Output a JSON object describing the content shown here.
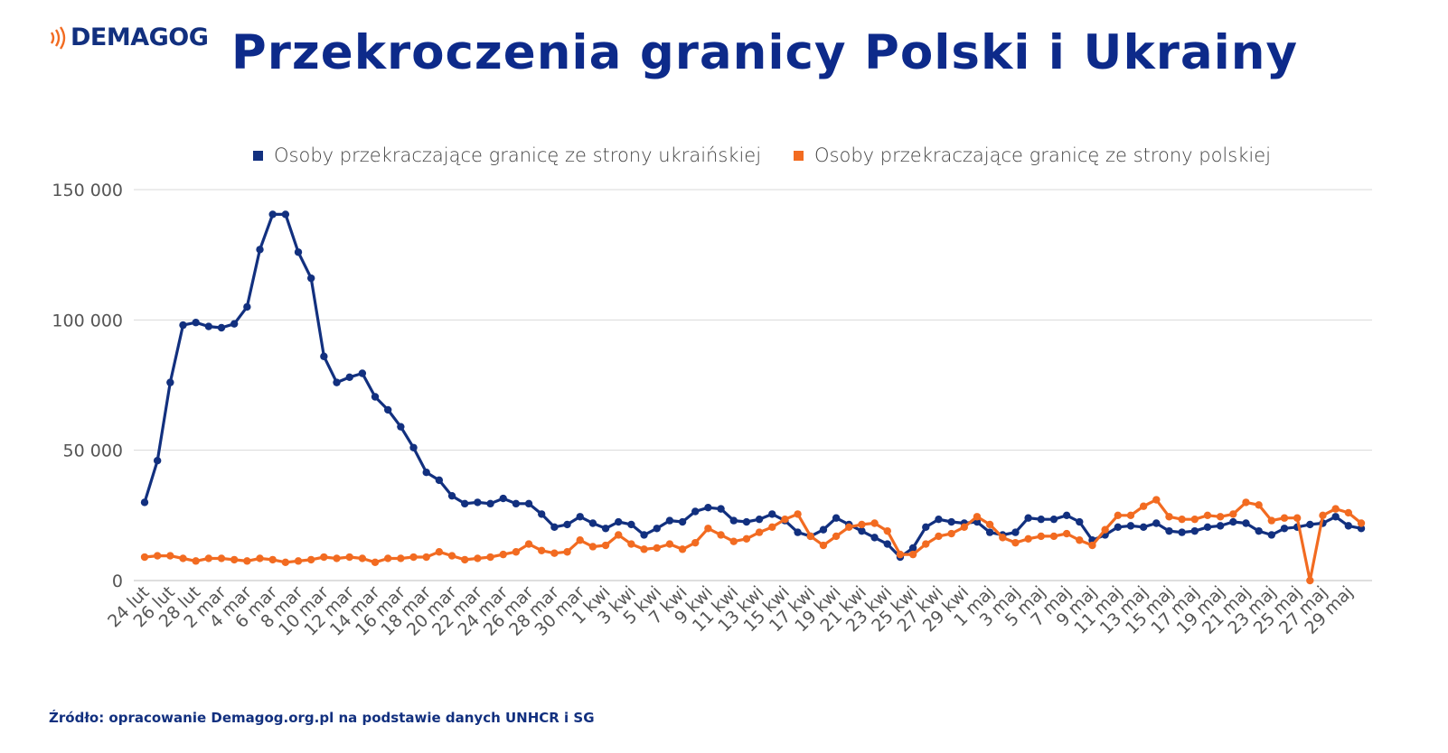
{
  "brand": {
    "name": "DEMAGOG",
    "accent": "#f26b21",
    "navy": "#12307f"
  },
  "title": "Przekroczenia granicy Polski i Ukrainy",
  "source": "Źródło: opracowanie Demagog.org.pl na podstawie danych UNHCR i SG",
  "chart_data": {
    "type": "line",
    "grid": true,
    "legend_position": "top",
    "ylim": [
      0,
      150000
    ],
    "yticks": [
      "0",
      "50 000",
      "100 000",
      "150 000"
    ],
    "ytick_values": [
      0,
      50000,
      100000,
      150000
    ],
    "x_tick_labels": [
      "24 lut",
      "26 lut",
      "28 lut",
      "2 mar",
      "4 mar",
      "6 mar",
      "8 mar",
      "10 mar",
      "12 mar",
      "14 mar",
      "16 mar",
      "18 mar",
      "20 mar",
      "22 mar",
      "24 mar",
      "26 mar",
      "28 mar",
      "30 mar",
      "1 kwi",
      "3 kwi",
      "5 kwi",
      "7 kwi",
      "9 kwi",
      "11 kwi",
      "13 kwi",
      "15 kwi",
      "17 kwi",
      "19 kwi",
      "21 kwi",
      "23 kwi",
      "25 kwi",
      "27 kwi",
      "29 kwi",
      "1 maj",
      "3 maj",
      "5 maj",
      "7 maj",
      "9 maj",
      "11 maj",
      "13 maj",
      "15 maj",
      "17 maj",
      "19 maj",
      "21 maj",
      "23 maj",
      "25 maj",
      "27 maj",
      "29 maj"
    ],
    "x_start": "24 lut",
    "x_end": "30 maj",
    "series": [
      {
        "name": "Osoby przekraczające granicę ze strony ukraińskiej",
        "color": "#12307f",
        "values": [
          30000,
          46000,
          76000,
          98000,
          99000,
          97500,
          97000,
          98500,
          105000,
          127000,
          140500,
          140500,
          126000,
          116000,
          86000,
          76000,
          78000,
          79500,
          70500,
          65500,
          59000,
          51000,
          41500,
          38500,
          32500,
          29500,
          30000,
          29500,
          31500,
          29500,
          29500,
          25500,
          20500,
          21500,
          24500,
          22000,
          20000,
          22500,
          21500,
          17500,
          20000,
          23000,
          22500,
          26500,
          28000,
          27500,
          23000,
          22500,
          23500,
          25500,
          23000,
          18500,
          17000,
          19500,
          24000,
          21500,
          19000,
          16500,
          14000,
          9000,
          12500,
          20500,
          23500,
          22500,
          22000,
          22500,
          18500,
          17500,
          18500,
          24000,
          23500,
          23500,
          25000,
          22500,
          15500,
          17500,
          20500,
          21000,
          20500,
          22000,
          19000,
          18500,
          19000,
          20500,
          21000,
          22500,
          22000,
          19000,
          17500,
          20000,
          20500,
          21500,
          22000,
          24500,
          21000,
          20000
        ]
      },
      {
        "name": "Osoby przekraczające granicę ze strony polskiej",
        "color": "#f26b21",
        "values": [
          9000,
          9500,
          9500,
          8500,
          7500,
          8500,
          8500,
          8000,
          7500,
          8500,
          8000,
          7000,
          7500,
          8000,
          9000,
          8500,
          9000,
          8500,
          7000,
          8500,
          8500,
          9000,
          9000,
          11000,
          9500,
          8000,
          8500,
          9000,
          10000,
          11000,
          14000,
          11500,
          10500,
          11000,
          15500,
          13000,
          13500,
          17500,
          14000,
          12000,
          12500,
          14000,
          12000,
          14500,
          20000,
          17500,
          15000,
          16000,
          18500,
          20500,
          23500,
          25500,
          17000,
          13500,
          17000,
          20500,
          21500,
          22000,
          19000,
          10000,
          10000,
          14000,
          17000,
          18000,
          20500,
          24500,
          21500,
          16500,
          14500,
          16000,
          17000,
          17000,
          18000,
          15500,
          13500,
          19500,
          25000,
          25000,
          28500,
          31000,
          24500,
          23500,
          23500,
          25000,
          24500,
          25500,
          30000,
          29000,
          23000,
          24000,
          24000,
          0,
          25000,
          27500,
          26000,
          22000
        ]
      }
    ]
  }
}
